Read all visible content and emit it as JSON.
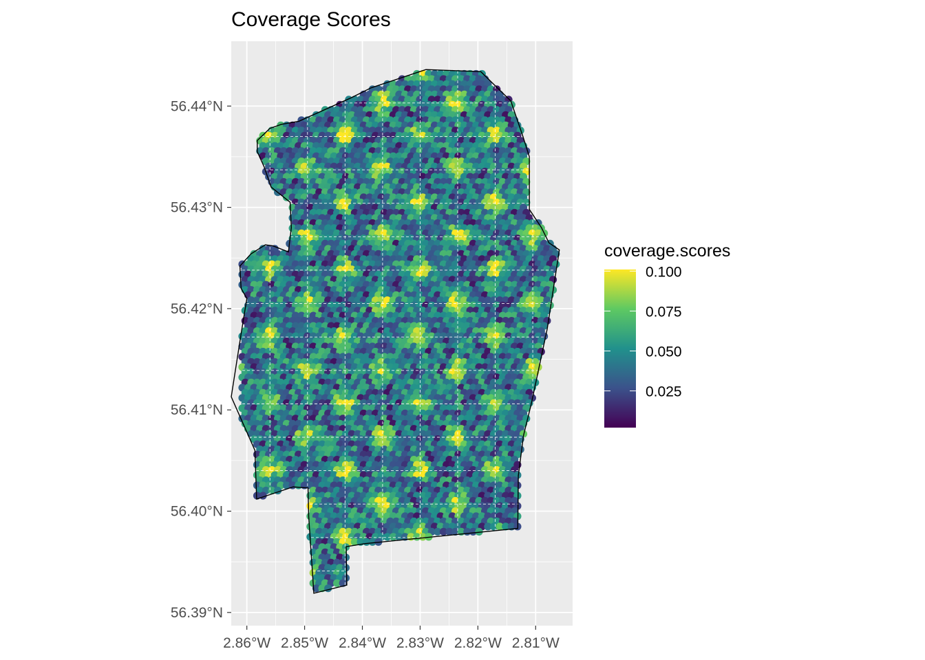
{
  "chart_data": {
    "type": "heatmap",
    "title": "Coverage Scores",
    "fill_variable": "coverage.scores",
    "colormap": "viridis",
    "x_ticks": [
      "2.86°W",
      "2.85°W",
      "2.84°W",
      "2.83°W",
      "2.82°W",
      "2.81°W"
    ],
    "x_tick_values": [
      -2.86,
      -2.85,
      -2.84,
      -2.83,
      -2.82,
      -2.81
    ],
    "y_ticks": [
      "56.39°N",
      "56.40°N",
      "56.41°N",
      "56.42°N",
      "56.43°N",
      "56.44°N"
    ],
    "y_tick_values": [
      56.39,
      56.4,
      56.41,
      56.42,
      56.43,
      56.44
    ],
    "xlim": [
      -2.8627,
      -2.8036
    ],
    "ylim": [
      56.3887,
      56.4464
    ],
    "legend": {
      "labels": [
        "0.100",
        "0.075",
        "0.050",
        "0.025"
      ],
      "values": [
        0.1,
        0.075,
        0.05,
        0.025
      ],
      "range": [
        0.002,
        0.101
      ],
      "colors": [
        "#440154",
        "#3b528b",
        "#21918c",
        "#5ec962",
        "#fde725"
      ],
      "placement": "right"
    },
    "hotspot_spacing_deg": {
      "lon": 0.0065,
      "lat": 0.0033
    },
    "boundary_lonlat": [
      [
        -2.8582,
        56.4366
      ],
      [
        -2.856,
        56.4378
      ],
      [
        -2.854,
        56.4382
      ],
      [
        -2.851,
        56.4385
      ],
      [
        -2.842,
        56.4408
      ],
      [
        -2.8385,
        56.4418
      ],
      [
        -2.829,
        56.4436
      ],
      [
        -2.8195,
        56.4434
      ],
      [
        -2.8143,
        56.4405
      ],
      [
        -2.8122,
        56.437
      ],
      [
        -2.8111,
        56.435
      ],
      [
        -2.8111,
        56.4298
      ],
      [
        -2.809,
        56.428
      ],
      [
        -2.8077,
        56.4265
      ],
      [
        -2.8059,
        56.4258
      ],
      [
        -2.808,
        56.418
      ],
      [
        -2.8108,
        56.4105
      ],
      [
        -2.8121,
        56.4075
      ],
      [
        -2.813,
        56.4035
      ],
      [
        -2.8131,
        56.3983
      ],
      [
        -2.8395,
        56.3968
      ],
      [
        -2.8428,
        56.3965
      ],
      [
        -2.8427,
        56.3927
      ],
      [
        -2.8484,
        56.3919
      ],
      [
        -2.8493,
        56.3995
      ],
      [
        -2.8494,
        56.4023
      ],
      [
        -2.852,
        56.4024
      ],
      [
        -2.8583,
        56.4012
      ],
      [
        -2.8586,
        56.406
      ],
      [
        -2.8627,
        56.4113
      ],
      [
        -2.861,
        56.4175
      ],
      [
        -2.86,
        56.421
      ],
      [
        -2.861,
        56.422
      ],
      [
        -2.8612,
        56.4242
      ],
      [
        -2.8593,
        56.4254
      ],
      [
        -2.8568,
        56.4263
      ],
      [
        -2.8555,
        56.4262
      ],
      [
        -2.8528,
        56.4256
      ],
      [
        -2.8523,
        56.428
      ],
      [
        -2.8525,
        56.4305
      ],
      [
        -2.8558,
        56.432
      ],
      [
        -2.857,
        56.434
      ],
      [
        -2.8582,
        56.4355
      ]
    ]
  }
}
